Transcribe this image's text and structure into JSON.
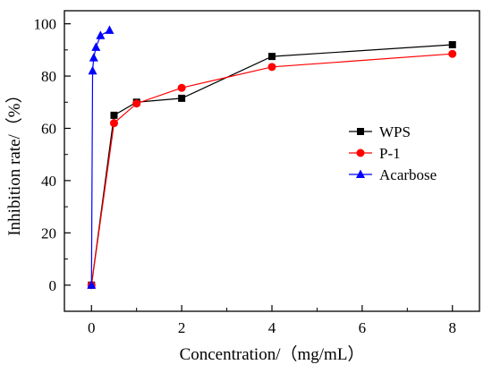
{
  "chart_data": {
    "type": "line",
    "xlabel": "Concentration/（mg/mL）",
    "ylabel": "Inhibition rate/（%）",
    "xlim": [
      -0.6,
      8.6
    ],
    "ylim": [
      -10,
      105
    ],
    "x_ticks": [
      0,
      2,
      4,
      6,
      8
    ],
    "y_ticks": [
      0,
      20,
      40,
      60,
      80,
      100
    ],
    "x_minor_step": 1,
    "y_minor_step": 10,
    "grid": false,
    "legend_position": "right-middle",
    "series": [
      {
        "name": "WPS",
        "color": "#000000",
        "marker": "square",
        "x": [
          0,
          0.5,
          1,
          2,
          4,
          8
        ],
        "y": [
          0,
          65,
          70,
          71.5,
          87.5,
          92
        ]
      },
      {
        "name": "P-1",
        "color": "#ff0000",
        "marker": "circle",
        "x": [
          0,
          0.5,
          1,
          2,
          4,
          8
        ],
        "y": [
          0,
          62,
          69.5,
          75.5,
          83.5,
          88.5
        ]
      },
      {
        "name": "Acarbose",
        "color": "#0000ff",
        "marker": "triangle",
        "x": [
          0,
          0.025,
          0.05,
          0.1,
          0.2,
          0.4
        ],
        "y": [
          0,
          82,
          87,
          91,
          95.5,
          97.5
        ]
      }
    ]
  }
}
